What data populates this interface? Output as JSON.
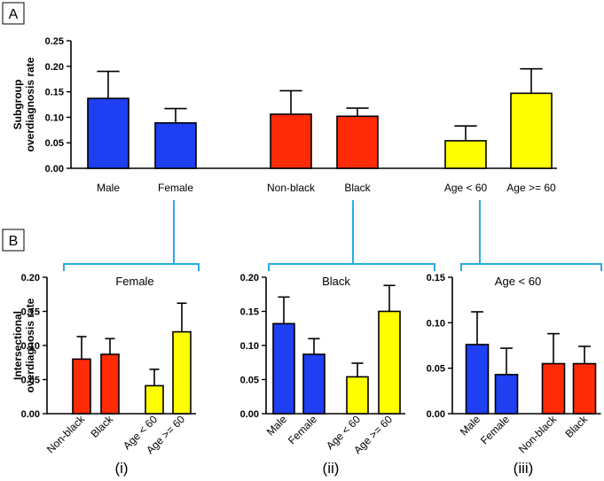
{
  "colors": {
    "blue": "#1f3ff2",
    "red": "#ff2a06",
    "yellow": "#ffff00",
    "connector": "#29abe2"
  },
  "panel_a": {
    "label": "A"
  },
  "panel_b": {
    "label": "B"
  },
  "chart_data": [
    {
      "type": "bar",
      "panel": "A",
      "ylabel": [
        "Subgroup",
        "overdiagnosis rate"
      ],
      "ylim": [
        0,
        0.25
      ],
      "yticks": [
        "0.00",
        "0.05",
        "0.10",
        "0.15",
        "0.20",
        "0.25"
      ],
      "categories": [
        "Male",
        "Female",
        "Non-black",
        "Black",
        "Age < 60",
        "Age >= 60"
      ],
      "values": [
        0.137,
        0.089,
        0.106,
        0.102,
        0.054,
        0.147
      ],
      "errors": [
        0.053,
        0.028,
        0.046,
        0.016,
        0.029,
        0.048
      ],
      "colors": [
        "blue",
        "blue",
        "red",
        "red",
        "yellow",
        "yellow"
      ],
      "grid": false
    },
    {
      "type": "bar",
      "panel": "B(i)",
      "title": "Female",
      "roman": "(i)",
      "ylabel": [
        "Intersectional",
        "overdiagnosis rate"
      ],
      "ylim": [
        0,
        0.2
      ],
      "yticks": [
        "0.00",
        "0.05",
        "0.10",
        "0.15",
        "0.20"
      ],
      "categories": [
        "Non-black",
        "Black",
        "Age < 60",
        "Age >= 60"
      ],
      "values": [
        0.08,
        0.087,
        0.041,
        0.12
      ],
      "errors": [
        0.033,
        0.023,
        0.024,
        0.042
      ],
      "colors": [
        "red",
        "red",
        "yellow",
        "yellow"
      ],
      "grid": false
    },
    {
      "type": "bar",
      "panel": "B(ii)",
      "title": "Black",
      "roman": "(ii)",
      "ylim": [
        0,
        0.2
      ],
      "yticks": [
        "0.00",
        "0.05",
        "0.10",
        "0.15",
        "0.20"
      ],
      "categories": [
        "Male",
        "Female",
        "Age < 60",
        "Age >= 60"
      ],
      "values": [
        0.132,
        0.087,
        0.054,
        0.15
      ],
      "errors": [
        0.039,
        0.023,
        0.02,
        0.038
      ],
      "colors": [
        "blue",
        "blue",
        "yellow",
        "yellow"
      ],
      "grid": false
    },
    {
      "type": "bar",
      "panel": "B(iii)",
      "title": "Age < 60",
      "roman": "(iii)",
      "ylim": [
        0,
        0.15
      ],
      "yticks": [
        "0.00",
        "0.05",
        "0.10",
        "0.15"
      ],
      "categories": [
        "Male",
        "Female",
        "Non-black",
        "Black"
      ],
      "values": [
        0.076,
        0.043,
        0.055,
        0.055
      ],
      "errors": [
        0.036,
        0.029,
        0.033,
        0.019
      ],
      "colors": [
        "blue",
        "blue",
        "red",
        "red"
      ],
      "grid": false
    }
  ]
}
